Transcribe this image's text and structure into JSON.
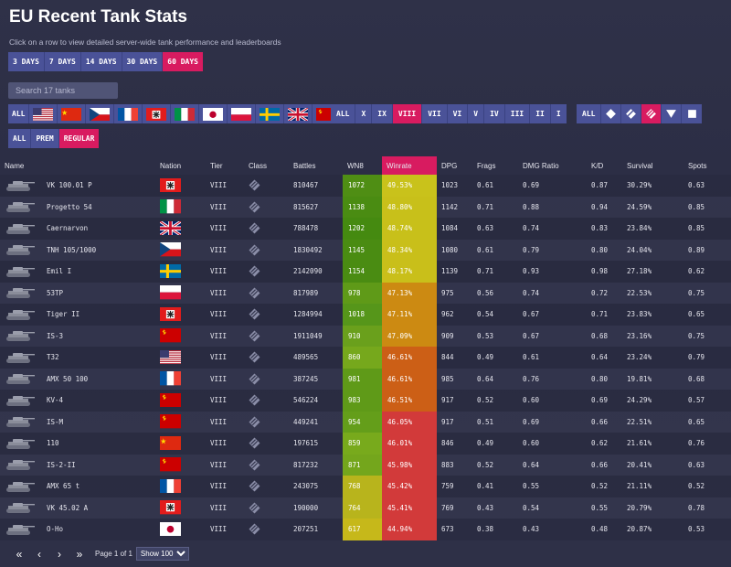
{
  "page": {
    "title": "EU Recent Tank Stats",
    "subtitle": "Click on a row to view detailed server-wide tank performance and leaderboards"
  },
  "filters": {
    "days": [
      {
        "label": "3 DAYS",
        "active": false
      },
      {
        "label": "7 DAYS",
        "active": false
      },
      {
        "label": "14 DAYS",
        "active": false
      },
      {
        "label": "30 DAYS",
        "active": false
      },
      {
        "label": "60 DAYS",
        "active": true
      }
    ],
    "search_placeholder": "Search 17 tanks",
    "nation_all": "ALL",
    "nations": [
      "usa",
      "china",
      "czech",
      "france",
      "germany",
      "italy",
      "japan",
      "poland",
      "sweden",
      "uk",
      "ussr"
    ],
    "tiers": [
      {
        "label": "ALL",
        "active": false
      },
      {
        "label": "X",
        "active": false
      },
      {
        "label": "IX",
        "active": false
      },
      {
        "label": "VIII",
        "active": true
      },
      {
        "label": "VII",
        "active": false
      },
      {
        "label": "VI",
        "active": false
      },
      {
        "label": "V",
        "active": false
      },
      {
        "label": "IV",
        "active": false
      },
      {
        "label": "III",
        "active": false
      },
      {
        "label": "II",
        "active": false
      },
      {
        "label": "I",
        "active": false
      }
    ],
    "class_all": "ALL",
    "classes": [
      {
        "icon": "light-tank-icon",
        "active": false
      },
      {
        "icon": "medium-tank-icon",
        "active": false
      },
      {
        "icon": "heavy-tank-icon",
        "active": true
      },
      {
        "icon": "td-icon",
        "active": false
      },
      {
        "icon": "spg-icon",
        "active": false
      }
    ],
    "premium": [
      {
        "label": "ALL",
        "active": false
      },
      {
        "label": "PREM",
        "active": false
      },
      {
        "label": "REGULAR",
        "active": true
      }
    ]
  },
  "table": {
    "columns": {
      "name": "Name",
      "nation": "Nation",
      "tier": "Tier",
      "class": "Class",
      "battles": "Battles",
      "wn8": "WN8",
      "winrate": "Winrate",
      "dpg": "DPG",
      "frags": "Frags",
      "dmg_ratio": "DMG Ratio",
      "kd": "K/D",
      "survival": "Survival",
      "spots": "Spots"
    },
    "rows": [
      {
        "name": "VK 100.01 P",
        "nation": "germany",
        "tier": "VIII",
        "battles": "810467",
        "wn8": "1072",
        "wn8_color": "#4f8e14",
        "winrate": "49.53%",
        "wr_color": "#c9c21b",
        "dpg": "1023",
        "frags": "0.61",
        "dmg_ratio": "0.69",
        "kd": "0.87",
        "survival": "30.29%",
        "spots": "0.63"
      },
      {
        "name": "Progetto 54",
        "nation": "italy",
        "tier": "VIII",
        "battles": "815627",
        "wn8": "1138",
        "wn8_color": "#4a8c12",
        "winrate": "48.80%",
        "wr_color": "#c8c01a",
        "dpg": "1142",
        "frags": "0.71",
        "dmg_ratio": "0.88",
        "kd": "0.94",
        "survival": "24.59%",
        "spots": "0.85"
      },
      {
        "name": "Caernarvon",
        "nation": "uk",
        "tier": "VIII",
        "battles": "788478",
        "wn8": "1202",
        "wn8_color": "#458a10",
        "winrate": "48.74%",
        "wr_color": "#c8c01a",
        "dpg": "1084",
        "frags": "0.63",
        "dmg_ratio": "0.74",
        "kd": "0.83",
        "survival": "23.84%",
        "spots": "0.85"
      },
      {
        "name": "TNH 105/1000",
        "nation": "czech",
        "tier": "VIII",
        "battles": "1830492",
        "wn8": "1145",
        "wn8_color": "#4a8c12",
        "winrate": "48.34%",
        "wr_color": "#c9bf1a",
        "dpg": "1080",
        "frags": "0.61",
        "dmg_ratio": "0.79",
        "kd": "0.80",
        "survival": "24.04%",
        "spots": "0.89"
      },
      {
        "name": "Emil I",
        "nation": "sweden",
        "tier": "VIII",
        "battles": "2142090",
        "wn8": "1154",
        "wn8_color": "#4a8c12",
        "winrate": "48.17%",
        "wr_color": "#c9bf1a",
        "dpg": "1139",
        "frags": "0.71",
        "dmg_ratio": "0.93",
        "kd": "0.98",
        "survival": "27.18%",
        "spots": "0.62"
      },
      {
        "name": "53TP",
        "nation": "poland",
        "tier": "VIII",
        "battles": "817989",
        "wn8": "978",
        "wn8_color": "#5f9a18",
        "winrate": "47.13%",
        "wr_color": "#cc8a12",
        "dpg": "975",
        "frags": "0.56",
        "dmg_ratio": "0.74",
        "kd": "0.72",
        "survival": "22.53%",
        "spots": "0.75"
      },
      {
        "name": "Tiger II",
        "nation": "germany",
        "tier": "VIII",
        "battles": "1284994",
        "wn8": "1018",
        "wn8_color": "#56961a",
        "winrate": "47.11%",
        "wr_color": "#cc8a12",
        "dpg": "962",
        "frags": "0.54",
        "dmg_ratio": "0.67",
        "kd": "0.71",
        "survival": "23.83%",
        "spots": "0.65"
      },
      {
        "name": "IS-3",
        "nation": "ussr",
        "tier": "VIII",
        "battles": "1911049",
        "wn8": "910",
        "wn8_color": "#6aa01c",
        "winrate": "47.09%",
        "wr_color": "#cc8a12",
        "dpg": "909",
        "frags": "0.53",
        "dmg_ratio": "0.67",
        "kd": "0.68",
        "survival": "23.16%",
        "spots": "0.75"
      },
      {
        "name": "T32",
        "nation": "usa",
        "tier": "VIII",
        "battles": "489565",
        "wn8": "860",
        "wn8_color": "#76a81c",
        "winrate": "46.61%",
        "wr_color": "#cc5f16",
        "dpg": "844",
        "frags": "0.49",
        "dmg_ratio": "0.61",
        "kd": "0.64",
        "survival": "23.24%",
        "spots": "0.79"
      },
      {
        "name": "AMX 50 100",
        "nation": "france",
        "tier": "VIII",
        "battles": "387245",
        "wn8": "981",
        "wn8_color": "#5f9a18",
        "winrate": "46.61%",
        "wr_color": "#cc5f16",
        "dpg": "985",
        "frags": "0.64",
        "dmg_ratio": "0.76",
        "kd": "0.80",
        "survival": "19.81%",
        "spots": "0.68"
      },
      {
        "name": "KV-4",
        "nation": "ussr",
        "tier": "VIII",
        "battles": "546224",
        "wn8": "983",
        "wn8_color": "#5f9a18",
        "winrate": "46.51%",
        "wr_color": "#cc5f16",
        "dpg": "917",
        "frags": "0.52",
        "dmg_ratio": "0.60",
        "kd": "0.69",
        "survival": "24.29%",
        "spots": "0.57"
      },
      {
        "name": "IS-M",
        "nation": "ussr",
        "tier": "VIII",
        "battles": "449241",
        "wn8": "954",
        "wn8_color": "#649e1a",
        "winrate": "46.05%",
        "wr_color": "#d23a3a",
        "dpg": "917",
        "frags": "0.51",
        "dmg_ratio": "0.69",
        "kd": "0.66",
        "survival": "22.51%",
        "spots": "0.65"
      },
      {
        "name": "110",
        "nation": "china",
        "tier": "VIII",
        "battles": "197615",
        "wn8": "859",
        "wn8_color": "#78aa1c",
        "winrate": "46.01%",
        "wr_color": "#d23a3a",
        "dpg": "846",
        "frags": "0.49",
        "dmg_ratio": "0.60",
        "kd": "0.62",
        "survival": "21.61%",
        "spots": "0.76"
      },
      {
        "name": "IS-2-II",
        "nation": "ussr",
        "tier": "VIII",
        "battles": "817232",
        "wn8": "871",
        "wn8_color": "#74a61c",
        "winrate": "45.98%",
        "wr_color": "#d23a3a",
        "dpg": "883",
        "frags": "0.52",
        "dmg_ratio": "0.64",
        "kd": "0.66",
        "survival": "20.41%",
        "spots": "0.63"
      },
      {
        "name": "AMX 65 t",
        "nation": "france",
        "tier": "VIII",
        "battles": "243075",
        "wn8": "768",
        "wn8_color": "#b8b41c",
        "winrate": "45.42%",
        "wr_color": "#d23a3a",
        "dpg": "759",
        "frags": "0.41",
        "dmg_ratio": "0.55",
        "kd": "0.52",
        "survival": "21.11%",
        "spots": "0.52"
      },
      {
        "name": "VK 45.02 A",
        "nation": "germany",
        "tier": "VIII",
        "battles": "190000",
        "wn8": "764",
        "wn8_color": "#b8b41c",
        "winrate": "45.41%",
        "wr_color": "#d23a3a",
        "dpg": "769",
        "frags": "0.43",
        "dmg_ratio": "0.54",
        "kd": "0.55",
        "survival": "20.79%",
        "spots": "0.78"
      },
      {
        "name": "O-Ho",
        "nation": "japan",
        "tier": "VIII",
        "battles": "207251",
        "wn8": "617",
        "wn8_color": "#c6b81a",
        "winrate": "44.94%",
        "wr_color": "#d23a3a",
        "dpg": "673",
        "frags": "0.38",
        "dmg_ratio": "0.43",
        "kd": "0.48",
        "survival": "20.87%",
        "spots": "0.53"
      }
    ]
  },
  "pagination": {
    "first": "«",
    "prev": "‹",
    "next": "›",
    "last": "»",
    "info": "Page 1 of 1",
    "show_selected": "Show 100",
    "show_options": [
      "Show 100"
    ]
  }
}
